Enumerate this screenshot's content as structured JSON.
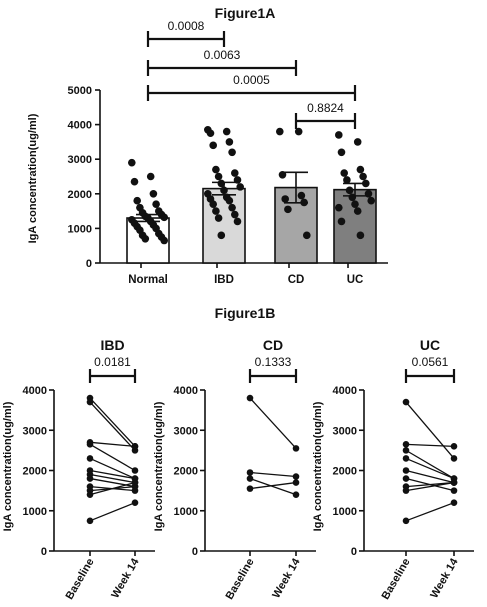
{
  "chart_data": [
    {
      "type": "bar",
      "title": "Figure1A",
      "xlabel": "",
      "ylabel": "IgA concentration(ug/ml)",
      "categories": [
        "Normal",
        "IBD",
        "CD",
        "UC"
      ],
      "values": [
        1300,
        2150,
        2180,
        2120
      ],
      "error": [
        100,
        180,
        440,
        180
      ],
      "bar_colors": [
        "#ffffff",
        "#d9d9d9",
        "#a6a6a6",
        "#7f7f7f"
      ],
      "ylim": [
        0,
        5000
      ],
      "yticks": [
        0,
        1000,
        2000,
        3000,
        4000,
        5000
      ],
      "points": {
        "Normal": [
          2900,
          2500,
          2350,
          2000,
          1800,
          1700,
          1600,
          1500,
          1450,
          1400,
          1350,
          1320,
          1300,
          1250,
          1200,
          1150,
          1100,
          1050,
          1000,
          950,
          850,
          800,
          750,
          700,
          650
        ],
        "IBD": [
          3850,
          3800,
          3750,
          3500,
          3400,
          3200,
          2700,
          2600,
          2500,
          2400,
          2300,
          2200,
          2100,
          2000,
          1900,
          1850,
          1800,
          1700,
          1600,
          1500,
          1400,
          1300,
          1200,
          800
        ],
        "CD": [
          3800,
          3800,
          2550,
          1950,
          1850,
          1750,
          1550,
          800
        ],
        "UC": [
          3700,
          3500,
          3200,
          2700,
          2600,
          2500,
          2400,
          2300,
          2100,
          2000,
          1900,
          1800,
          1700,
          1600,
          1500,
          1200,
          800
        ]
      },
      "comparisons": [
        {
          "groups": [
            "Normal",
            "IBD"
          ],
          "p": "0.0008"
        },
        {
          "groups": [
            "Normal",
            "CD"
          ],
          "p": "0.0063"
        },
        {
          "groups": [
            "Normal",
            "UC"
          ],
          "p": "0.0005"
        },
        {
          "groups": [
            "CD",
            "UC"
          ],
          "p": "0.8824"
        }
      ]
    },
    {
      "type": "line",
      "title": "IBD",
      "ylabel": "IgA concentration(ug/ml)",
      "x": [
        "Baseline",
        "Week 14"
      ],
      "ylim": [
        0,
        4000
      ],
      "yticks": [
        0,
        1000,
        2000,
        3000,
        4000
      ],
      "p": "0.0181",
      "pairs": [
        [
          3800,
          2600
        ],
        [
          3700,
          2500
        ],
        [
          2700,
          2600
        ],
        [
          2650,
          2000
        ],
        [
          2300,
          1800
        ],
        [
          2000,
          1800
        ],
        [
          1900,
          1700
        ],
        [
          1800,
          1600
        ],
        [
          1600,
          1500
        ],
        [
          1500,
          1600
        ],
        [
          1400,
          1700
        ],
        [
          750,
          1200
        ]
      ]
    },
    {
      "type": "line",
      "title": "CD",
      "ylabel": "IgA concentration(ug/ml)",
      "x": [
        "Baseline",
        "Week 14"
      ],
      "ylim": [
        0,
        4000
      ],
      "yticks": [
        0,
        1000,
        2000,
        3000,
        4000
      ],
      "p": "0.1333",
      "pairs": [
        [
          3800,
          2550
        ],
        [
          1950,
          1850
        ],
        [
          1800,
          1400
        ],
        [
          1550,
          1700
        ]
      ]
    },
    {
      "type": "line",
      "title": "UC",
      "ylabel": "IgA concentration(ug/ml)",
      "x": [
        "Baseline",
        "Week 14"
      ],
      "ylim": [
        0,
        4000
      ],
      "yticks": [
        0,
        1000,
        2000,
        3000,
        4000
      ],
      "p": "0.0561",
      "pairs": [
        [
          3700,
          2300
        ],
        [
          2650,
          2600
        ],
        [
          2500,
          1800
        ],
        [
          2300,
          1800
        ],
        [
          2000,
          1700
        ],
        [
          1800,
          1500
        ],
        [
          1600,
          1700
        ],
        [
          1500,
          1700
        ],
        [
          750,
          1200
        ]
      ]
    }
  ],
  "figure_b_title": "Figure1B"
}
